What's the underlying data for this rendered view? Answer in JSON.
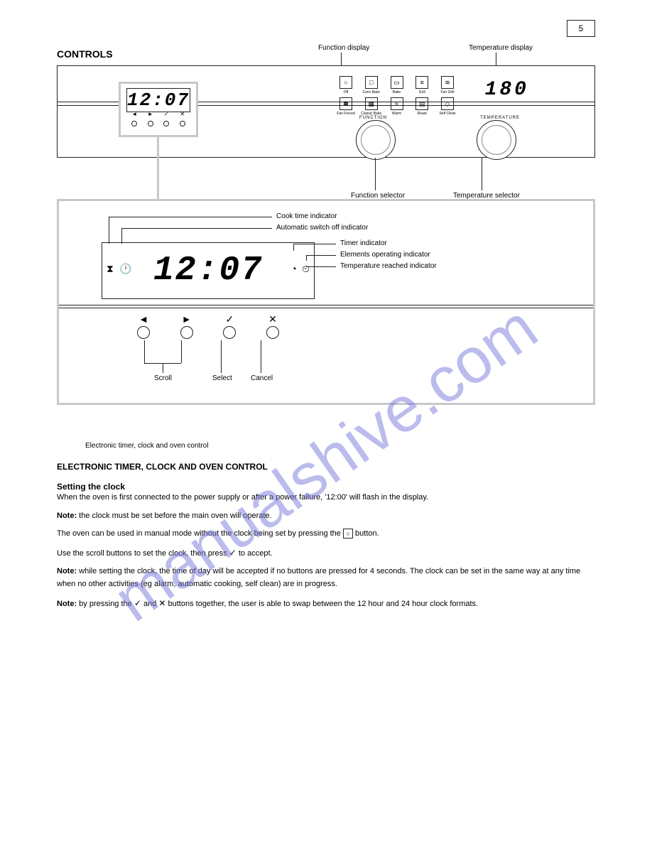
{
  "page": {
    "number": "5",
    "section_title": "CONTROLS"
  },
  "control_panel": {
    "clock_value": "12:07",
    "temperature_value": "180",
    "function_label": "FUNCTION",
    "temperature_label": "TEMPERATURE",
    "labels": {
      "func_selector": "Function selector",
      "temp_selector": "Temperature selector",
      "temp_display_label": "Temperature display",
      "func_display_label": "Function display",
      "timer_module_label": "Electronic timer, clock and oven control"
    },
    "function_icons_row1": [
      {
        "label": "Off",
        "glyph": "○"
      },
      {
        "label": "Conv Bake",
        "glyph": "□"
      },
      {
        "label": "Bake",
        "glyph": "▭"
      },
      {
        "label": "Grill",
        "glyph": "≡"
      },
      {
        "label": "Fan Grill",
        "glyph": "≋"
      }
    ],
    "function_icons_row2": [
      {
        "label": "Fan Forced",
        "glyph": "✽"
      },
      {
        "label": "Classic Bake",
        "glyph": "▦"
      },
      {
        "label": "Warm",
        "glyph": "≈"
      },
      {
        "label": "Roast",
        "glyph": "▤"
      },
      {
        "label": "Self Clean",
        "glyph": "◇"
      }
    ],
    "timer_buttons": [
      "◄",
      "►",
      "✓",
      "✕"
    ]
  },
  "detail": {
    "clock_value": "12:07",
    "left_icons": [
      "⧗",
      "🕐"
    ],
    "right_icons": [
      "◔",
      "⏲"
    ],
    "buttons": [
      {
        "icon": "◄"
      },
      {
        "icon": "►"
      },
      {
        "icon": "✓"
      },
      {
        "icon": "✕"
      }
    ],
    "callouts": {
      "cook_time_indicator": "Cook time indicator",
      "auto_off_indicator": "Automatic switch off indicator",
      "scroll": "Scroll",
      "select": "Select",
      "cancel": "Cancel",
      "timer_indicator": "Timer indicator",
      "elements_indicator": "Elements operating indicator",
      "temp_reached_indicator": "Temperature reached indicator"
    }
  },
  "timer_section": {
    "heading": "ELECTRONIC TIMER, CLOCK AND OVEN CONTROL",
    "setting_clock": {
      "heading": "Setting the clock",
      "line1": "When the oven is first connected to the power supply or after a power failure, '12:00' will flash in the display.",
      "note1_label": "Note:",
      "note1_text": "the clock must be set before the main oven will operate.",
      "line2": "The oven can be used in manual mode without the clock being set by pressing the ",
      "line2_icon": "○",
      "line2_cont": " button.",
      "line3_pre": "Use the scroll buttons to set the clock, then press ",
      "line3_icon": "✓",
      "line3_post": " to accept.",
      "note2_label": "Note:",
      "note2_text": "while setting the clock, the time of day will be accepted if no buttons are pressed for 4 seconds. The clock can be set in the same way at any time when no other activities (eg alarm, automatic cooking, self clean) are in progress.",
      "note3_label": "Note:",
      "note3_pre": "by pressing the ",
      "note3_icon1": "✓",
      "note3_mid": " and ",
      "note3_icon2": "✕",
      "note3_post": " buttons together, the user is able to swap between the 12 hour and 24 hour clock formats."
    }
  },
  "watermark_text": "manualshive.com",
  "colors": {
    "accent_grey": "#c8c8c8",
    "text": "#222222",
    "watermark": "rgba(120,120,220,0.5)"
  }
}
